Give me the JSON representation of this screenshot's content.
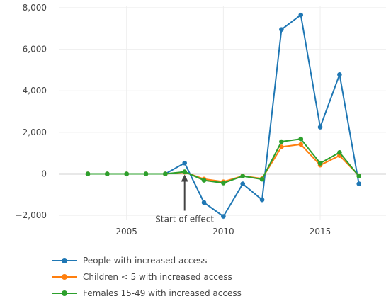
{
  "chart_data": {
    "type": "line",
    "x": [
      2003,
      2004,
      2005,
      2006,
      2007,
      2008,
      2009,
      2010,
      2011,
      2012,
      2013,
      2014,
      2015,
      2016,
      2017
    ],
    "series": [
      {
        "name": "People with increased access",
        "color": "#1f77b4",
        "values": [
          0,
          0,
          0,
          0,
          0,
          520,
          -1380,
          -2050,
          -480,
          -1250,
          6950,
          7650,
          2250,
          4780,
          -480
        ]
      },
      {
        "name": "Children < 5 with increased access",
        "color": "#ff7f0e",
        "values": [
          0,
          0,
          0,
          0,
          0,
          80,
          -250,
          -380,
          -100,
          -230,
          1300,
          1420,
          420,
          880,
          -90
        ]
      },
      {
        "name": "Females 15-49 with increased access",
        "color": "#2ca02c",
        "values": [
          0,
          0,
          0,
          0,
          0,
          100,
          -310,
          -440,
          -110,
          -260,
          1550,
          1680,
          510,
          1030,
          -110
        ]
      }
    ],
    "xlim": [
      2001.5,
      2018.4
    ],
    "ylim": [
      -2200,
      8100
    ],
    "x_ticks": [
      2005,
      2010,
      2015
    ],
    "y_ticks": [
      -2000,
      0,
      2000,
      4000,
      6000,
      8000
    ],
    "y_tick_labels": [
      "−2,000",
      "0",
      "2,000",
      "4,000",
      "6,000",
      "8,000"
    ],
    "grid": true,
    "legend_position": "bottom-left",
    "annotation": {
      "text": "Start of effect",
      "x": 2008,
      "y": 0
    }
  }
}
